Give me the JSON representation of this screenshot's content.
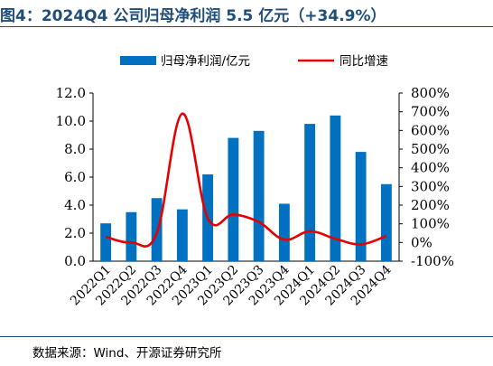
{
  "title": "图4：2024Q4 公司归母净利润 5.5 亿元（+34.9%）",
  "source": "数据来源：Wind、开源证券研究所",
  "colors": {
    "bar": "#0070c0",
    "line": "#e60000",
    "title": "#1f4e79"
  },
  "chart_data": {
    "type": "bar",
    "categories": [
      "2022Q1",
      "2022Q2",
      "2022Q3",
      "2022Q4",
      "2023Q1",
      "2023Q2",
      "2023Q3",
      "2023Q4",
      "2024Q1",
      "2024Q2",
      "2024Q3",
      "2024Q4"
    ],
    "series": [
      {
        "name": "归母净利润/亿元",
        "type": "bar",
        "axis": "left",
        "values": [
          2.7,
          3.5,
          4.5,
          3.7,
          6.2,
          8.8,
          9.3,
          4.1,
          9.8,
          10.4,
          7.8,
          5.5
        ]
      },
      {
        "name": "同比增速",
        "type": "line",
        "axis": "right",
        "values": [
          30,
          0,
          50,
          690,
          130,
          150,
          110,
          15,
          60,
          20,
          -10,
          35
        ]
      }
    ],
    "y_left": {
      "lim": [
        0,
        12
      ],
      "ticks": [
        "0.0",
        "2.0",
        "4.0",
        "6.0",
        "8.0",
        "10.0",
        "12.0"
      ],
      "tick_values": [
        0,
        2,
        4,
        6,
        8,
        10,
        12
      ]
    },
    "y_right": {
      "lim": [
        -100,
        800
      ],
      "ticks": [
        "-100%",
        "0%",
        "100%",
        "200%",
        "300%",
        "400%",
        "500%",
        "600%",
        "700%",
        "800%"
      ],
      "tick_values": [
        -100,
        0,
        100,
        200,
        300,
        400,
        500,
        600,
        700,
        800
      ]
    },
    "legend": {
      "position": "top-center",
      "entries": [
        "归母净利润/亿元",
        "同比增速"
      ]
    },
    "grid": false
  }
}
